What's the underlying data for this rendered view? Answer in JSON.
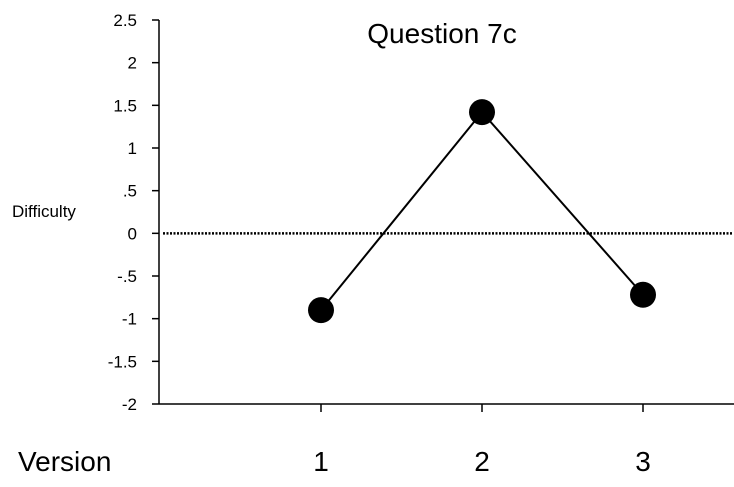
{
  "chart_data": {
    "type": "line",
    "title": "Question 7c",
    "xlabel": "Version",
    "ylabel": "Difficulty",
    "categories": [
      "1",
      "2",
      "3"
    ],
    "series": [
      {
        "values": [
          -0.9,
          1.42,
          -0.72
        ],
        "color": "#000000",
        "marker": "filled-circle"
      }
    ],
    "reference_line": {
      "y": 0,
      "style": "dotted"
    },
    "ylim": [
      -2,
      2.5
    ],
    "y_ticks": [
      -2,
      -1.5,
      -1,
      -0.5,
      0,
      0.5,
      1,
      1.5,
      2,
      2.5
    ],
    "y_tick_labels": [
      "-2",
      "-1.5",
      "-1",
      "-.5",
      "0",
      ".5",
      "1",
      "1.5",
      "2",
      "2.5"
    ],
    "grid": false,
    "legend": "none"
  }
}
